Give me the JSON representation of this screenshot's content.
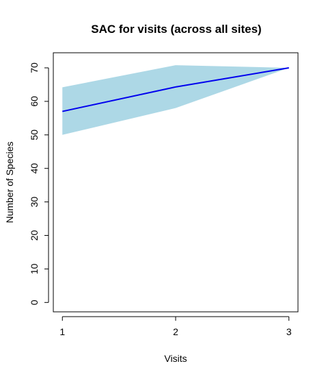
{
  "chart_data": {
    "type": "line",
    "title": "SAC for visits (across all sites)",
    "xlabel": "Visits",
    "ylabel": "Number of Species",
    "x": [
      1,
      2,
      3
    ],
    "series": [
      {
        "values": [
          57,
          64.3,
          70
        ],
        "ci_lower": [
          50,
          58,
          70
        ],
        "ci_upper": [
          64.2,
          70.8,
          70
        ],
        "line_color": "#0000ee",
        "band_color": "#add8e6"
      }
    ],
    "x_ticks": [
      "1",
      "2",
      "3"
    ],
    "y_ticks": [
      "0",
      "10",
      "20",
      "30",
      "40",
      "50",
      "60",
      "70"
    ],
    "xlim": [
      0.92,
      3.08
    ],
    "ylim": [
      -2.8,
      74.5
    ],
    "grid": false,
    "legend": "none"
  }
}
